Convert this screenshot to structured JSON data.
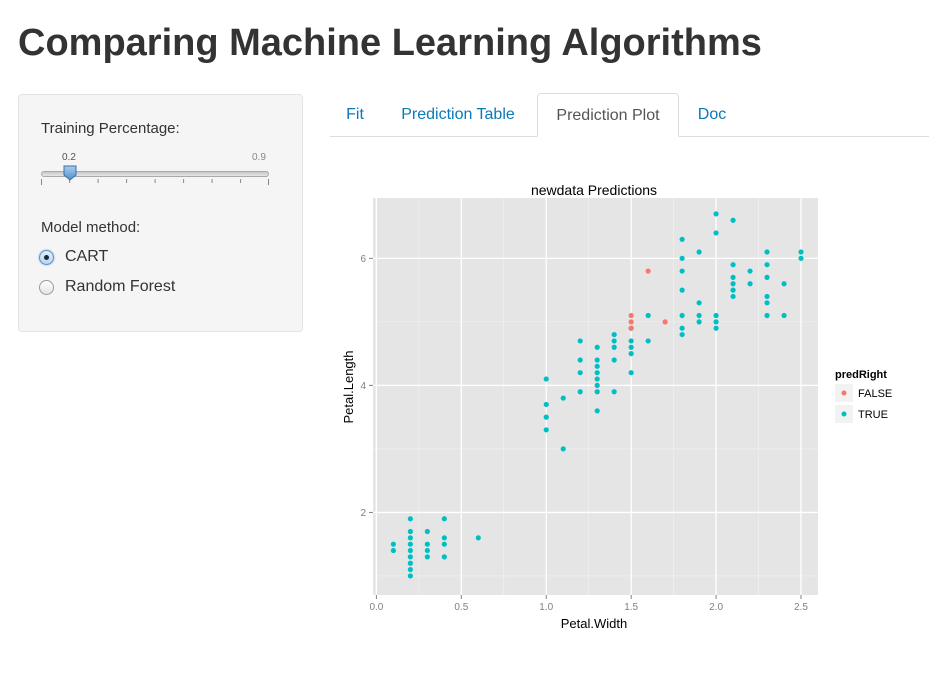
{
  "page": {
    "title": "Comparing Machine Learning Algorithms"
  },
  "sidebar": {
    "slider": {
      "label": "Training Percentage:",
      "value": 0.2,
      "value_label": "0.2",
      "max_label": "0.9"
    },
    "method": {
      "label": "Model method:",
      "options": [
        {
          "label": "CART",
          "selected": true
        },
        {
          "label": "Random Forest",
          "selected": false
        }
      ]
    }
  },
  "tabs": [
    {
      "label": "Fit",
      "active": false
    },
    {
      "label": "Prediction Table",
      "active": false
    },
    {
      "label": "Prediction Plot",
      "active": true
    },
    {
      "label": "Doc",
      "active": false
    }
  ],
  "colors": {
    "link": "#0a79b8",
    "false_points": "#f8766d",
    "true_points": "#00bfc4",
    "panel_bg": "#e5e5e5",
    "slider_handle": "#6fa8dc"
  },
  "chart_data": {
    "type": "scatter",
    "title": "newdata Predictions",
    "xlabel": "Petal.Width",
    "ylabel": "Petal.Length",
    "xlim": [
      -0.02,
      2.6
    ],
    "ylim": [
      0.7,
      6.95
    ],
    "xticks": [
      0.0,
      0.5,
      1.0,
      1.5,
      2.0,
      2.5
    ],
    "xtick_labels": [
      "0.0",
      "0.5",
      "1.0",
      "1.5",
      "2.0",
      "2.5"
    ],
    "yticks": [
      2,
      4,
      6
    ],
    "ytick_labels": [
      "2",
      "4",
      "6"
    ],
    "grid": true,
    "legend": {
      "title": "predRight",
      "position": "right",
      "entries": [
        "FALSE",
        "TRUE"
      ]
    },
    "series": [
      {
        "name": "FALSE",
        "points": [
          [
            1.5,
            5.1
          ],
          [
            1.5,
            5.0
          ],
          [
            1.6,
            5.8
          ],
          [
            1.7,
            5.0
          ],
          [
            1.5,
            4.9
          ]
        ]
      },
      {
        "name": "TRUE",
        "points": [
          [
            0.1,
            1.5
          ],
          [
            0.1,
            1.4
          ],
          [
            0.2,
            1.9
          ],
          [
            0.2,
            1.7
          ],
          [
            0.2,
            1.6
          ],
          [
            0.2,
            1.5
          ],
          [
            0.2,
            1.4
          ],
          [
            0.2,
            1.3
          ],
          [
            0.2,
            1.2
          ],
          [
            0.2,
            1.1
          ],
          [
            0.2,
            1.0
          ],
          [
            0.3,
            1.7
          ],
          [
            0.3,
            1.5
          ],
          [
            0.3,
            1.4
          ],
          [
            0.3,
            1.3
          ],
          [
            0.4,
            1.9
          ],
          [
            0.4,
            1.6
          ],
          [
            0.4,
            1.5
          ],
          [
            0.4,
            1.3
          ],
          [
            0.6,
            1.6
          ],
          [
            1.0,
            4.1
          ],
          [
            1.0,
            3.7
          ],
          [
            1.0,
            3.5
          ],
          [
            1.0,
            3.3
          ],
          [
            1.1,
            3.8
          ],
          [
            1.1,
            3.0
          ],
          [
            1.2,
            4.7
          ],
          [
            1.2,
            4.4
          ],
          [
            1.2,
            4.2
          ],
          [
            1.2,
            3.9
          ],
          [
            1.3,
            4.6
          ],
          [
            1.3,
            4.4
          ],
          [
            1.3,
            4.3
          ],
          [
            1.3,
            4.2
          ],
          [
            1.3,
            4.1
          ],
          [
            1.3,
            4.0
          ],
          [
            1.3,
            3.9
          ],
          [
            1.3,
            3.6
          ],
          [
            1.4,
            4.8
          ],
          [
            1.4,
            4.7
          ],
          [
            1.4,
            4.6
          ],
          [
            1.4,
            4.4
          ],
          [
            1.4,
            3.9
          ],
          [
            1.5,
            4.9
          ],
          [
            1.5,
            4.7
          ],
          [
            1.5,
            4.6
          ],
          [
            1.5,
            4.5
          ],
          [
            1.5,
            4.2
          ],
          [
            1.6,
            5.1
          ],
          [
            1.6,
            4.7
          ],
          [
            1.8,
            6.3
          ],
          [
            1.8,
            6.0
          ],
          [
            1.8,
            5.8
          ],
          [
            1.8,
            5.5
          ],
          [
            1.8,
            5.1
          ],
          [
            1.8,
            4.9
          ],
          [
            1.8,
            4.8
          ],
          [
            1.9,
            6.1
          ],
          [
            1.9,
            5.3
          ],
          [
            1.9,
            5.1
          ],
          [
            1.9,
            5.0
          ],
          [
            2.0,
            6.7
          ],
          [
            2.0,
            6.4
          ],
          [
            2.0,
            5.1
          ],
          [
            2.0,
            5.0
          ],
          [
            2.0,
            4.9
          ],
          [
            2.1,
            6.6
          ],
          [
            2.1,
            5.9
          ],
          [
            2.1,
            5.7
          ],
          [
            2.1,
            5.6
          ],
          [
            2.1,
            5.5
          ],
          [
            2.1,
            5.4
          ],
          [
            2.2,
            5.8
          ],
          [
            2.2,
            5.6
          ],
          [
            2.3,
            6.1
          ],
          [
            2.3,
            5.9
          ],
          [
            2.3,
            5.7
          ],
          [
            2.3,
            5.4
          ],
          [
            2.3,
            5.3
          ],
          [
            2.3,
            5.1
          ],
          [
            2.4,
            5.6
          ],
          [
            2.4,
            5.1
          ],
          [
            2.5,
            6.1
          ],
          [
            2.5,
            6.0
          ]
        ]
      }
    ]
  }
}
